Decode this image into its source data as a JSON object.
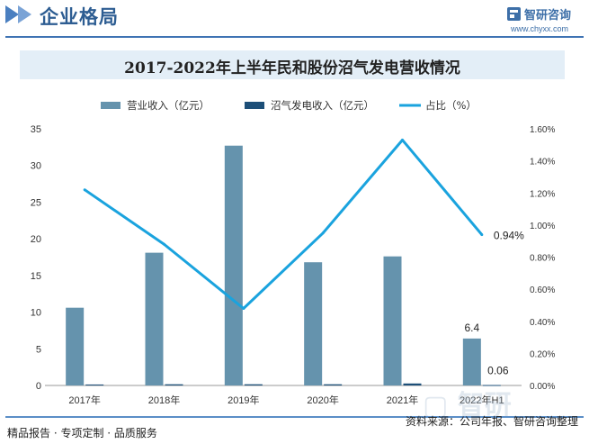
{
  "header": {
    "title": "企业格局",
    "brand_name": "智研咨询",
    "brand_url": "www.chyxx.com"
  },
  "footer": {
    "left": "精品报告 · 专项定制 · 品质服务",
    "source": "资料来源：公司年报、智研咨询整理"
  },
  "colors": {
    "bar_revenue": "#6593ad",
    "bar_biogas": "#1d4f78",
    "line_share": "#1aa3de",
    "header_accent": "#3e73b3",
    "title_bg": "#e3eef7"
  },
  "chart_data": {
    "type": "bar",
    "title": "2017-2022年上半年民和股份沼气发电营收情况",
    "categories": [
      "2017年",
      "2018年",
      "2019年",
      "2020年",
      "2021年",
      "2022年H1"
    ],
    "series": [
      {
        "name": "营业收入（亿元）",
        "type": "bar",
        "axis": "left",
        "values": [
          10.6,
          18.1,
          32.7,
          16.8,
          17.6,
          6.4
        ]
      },
      {
        "name": "沼气发电收入（亿元）",
        "type": "bar",
        "axis": "left",
        "values": [
          0.13,
          0.16,
          0.16,
          0.16,
          0.27,
          0.06
        ]
      },
      {
        "name": "占比（%）",
        "type": "line",
        "axis": "right",
        "values": [
          1.22,
          0.88,
          0.48,
          0.95,
          1.53,
          0.94
        ]
      }
    ],
    "data_labels": [
      {
        "series": 0,
        "index": 5,
        "text": "6.4"
      },
      {
        "series": 1,
        "index": 5,
        "text": "0.06"
      },
      {
        "series": 2,
        "index": 5,
        "text": "0.94%"
      }
    ],
    "y_left": {
      "min": 0,
      "max": 35,
      "ticks": [
        "0",
        "5",
        "10",
        "15",
        "20",
        "25",
        "30",
        "35"
      ]
    },
    "y_right": {
      "min": 0,
      "max": 1.6,
      "ticks": [
        "0.00%",
        "0.20%",
        "0.40%",
        "0.60%",
        "0.80%",
        "1.00%",
        "1.20%",
        "1.40%",
        "1.60%"
      ]
    },
    "grid": false,
    "legend_position": "top"
  }
}
